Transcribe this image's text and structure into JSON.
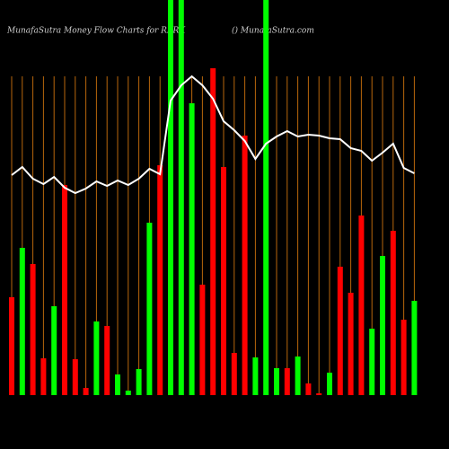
{
  "chart_data": {
    "type": "bar",
    "title": "MunafaSutra  Money Flow  Charts for RBRK",
    "subtitle": "() MunafaSutra.com",
    "ylim": [
      0,
      440
    ],
    "grid": true,
    "series": [
      {
        "type": "bar",
        "values": [
          109,
          164,
          146,
          41,
          99,
          234,
          40,
          8,
          82,
          77,
          23,
          5,
          29,
          192,
          256,
          440,
          440,
          325,
          123,
          364,
          254,
          47,
          289,
          42,
          440,
          30,
          30,
          43,
          13,
          2,
          25,
          143,
          114,
          200,
          74,
          155,
          183,
          84,
          105
        ],
        "colors": [
          "#ff0000",
          "#00ff00",
          "#ff0000",
          "#ff0000",
          "#00ff00",
          "#ff0000",
          "#ff0000",
          "#ff0000",
          "#00ff00",
          "#ff0000",
          "#00ff00",
          "#00ff00",
          "#00ff00",
          "#00ff00",
          "#ff0000",
          "#00ff00",
          "#00ff00",
          "#00ff00",
          "#ff0000",
          "#ff0000",
          "#ff0000",
          "#ff0000",
          "#ff0000",
          "#00ff00",
          "#00ff00",
          "#00ff00",
          "#ff0000",
          "#00ff00",
          "#ff0000",
          "#ff0000",
          "#00ff00",
          "#ff0000",
          "#ff0000",
          "#ff0000",
          "#00ff00",
          "#00ff00",
          "#ff0000",
          "#ff0000",
          "#00ff00"
        ]
      },
      {
        "type": "line",
        "color": "#ffffff",
        "values": [
          245,
          254,
          241,
          235,
          243,
          231,
          225,
          230,
          238,
          233,
          239,
          234,
          241,
          252,
          246,
          328,
          345,
          355,
          345,
          330,
          305,
          295,
          283,
          263,
          280,
          288,
          294,
          288,
          290,
          289,
          286,
          285,
          275,
          272,
          261,
          270,
          280,
          253,
          247
        ]
      }
    ]
  }
}
